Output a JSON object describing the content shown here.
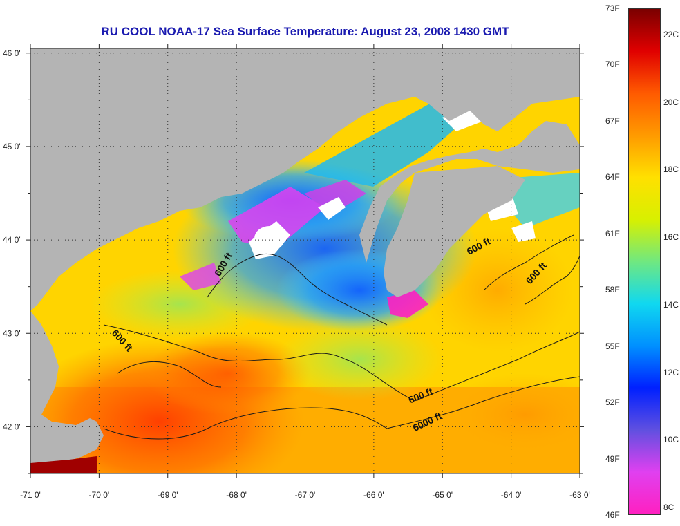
{
  "title": "RU COOL  NOAA-17  Sea Surface Temperature:  August 23, 2008 1430 GMT",
  "map": {
    "lon_range": [
      -71,
      -63
    ],
    "lat_range": [
      41.5,
      46.05
    ],
    "lon_ticks": [
      {
        "value": -71,
        "label": "-71 0'"
      },
      {
        "value": -70,
        "label": "-70 0'"
      },
      {
        "value": -69,
        "label": "-69 0'"
      },
      {
        "value": -68,
        "label": "-68 0'"
      },
      {
        "value": -67,
        "label": "-67 0'"
      },
      {
        "value": -66,
        "label": "-66 0'"
      },
      {
        "value": -65,
        "label": "-65 0'"
      },
      {
        "value": -64,
        "label": "-64 0'"
      },
      {
        "value": -63,
        "label": "-63 0'"
      }
    ],
    "lat_ticks": [
      {
        "value": 46,
        "label": "46 0'"
      },
      {
        "value": 45,
        "label": "45 0'"
      },
      {
        "value": 44,
        "label": "44 0'"
      },
      {
        "value": 43,
        "label": "43 0'"
      },
      {
        "value": 42,
        "label": "42 0'"
      }
    ],
    "contour_labels": [
      {
        "text": "600 ft",
        "lon": -68.15,
        "lat": 43.72,
        "rotate": -60
      },
      {
        "text": "600 ft",
        "lon": -69.7,
        "lat": 42.9,
        "rotate": 48
      },
      {
        "text": "600 ft",
        "lon": -64.45,
        "lat": 43.9,
        "rotate": -28
      },
      {
        "text": "600 ft",
        "lon": -63.6,
        "lat": 43.62,
        "rotate": -48
      },
      {
        "text": "600 ft",
        "lon": -65.3,
        "lat": 42.3,
        "rotate": -22
      },
      {
        "text": "6000 ft",
        "lon": -65.2,
        "lat": 42.02,
        "rotate": -26
      }
    ],
    "colors": {
      "land": "#b4b4b4",
      "cloud": "#ffffff",
      "contour": "#1a1a1a"
    }
  },
  "colorbar": {
    "range_f": [
      46,
      73
    ],
    "fahrenheit_labels": [
      "73F",
      "70F",
      "67F",
      "64F",
      "61F",
      "58F",
      "55F",
      "52F",
      "49F",
      "46F"
    ],
    "celsius_labels": [
      "22C",
      "20C",
      "18C",
      "16C",
      "14C",
      "12C",
      "10C",
      "8C"
    ],
    "gradient": [
      "#7a0000",
      "#e00000",
      "#ff5a00",
      "#ff9a00",
      "#ffe000",
      "#d8f000",
      "#70e880",
      "#10d8f0",
      "#0090ff",
      "#0020ff",
      "#6050e0",
      "#e040f0",
      "#ff20c0"
    ]
  }
}
